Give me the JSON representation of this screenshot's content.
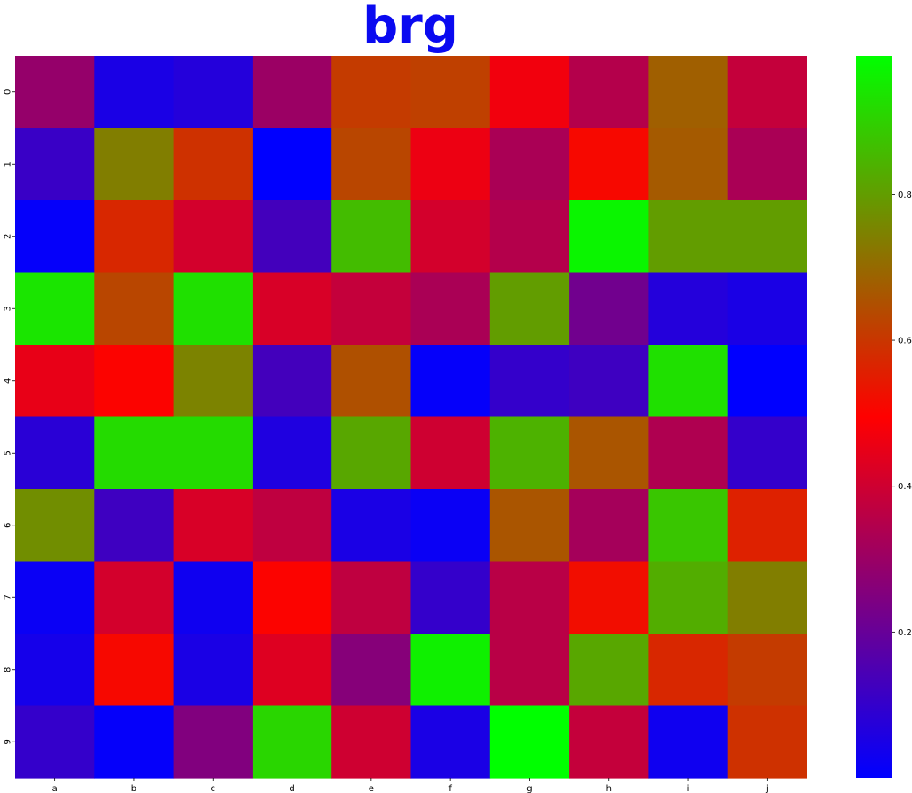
{
  "chart_data": {
    "type": "heatmap",
    "title": "brg",
    "title_color": "#0a0af0",
    "colormap": "brg",
    "x_categories": [
      "a",
      "b",
      "c",
      "d",
      "e",
      "f",
      "g",
      "h",
      "i",
      "j"
    ],
    "y_categories": [
      "0",
      "1",
      "2",
      "3",
      "4",
      "5",
      "6",
      "7",
      "8",
      "9"
    ],
    "values": [
      [
        0.29,
        0.05,
        0.07,
        0.3,
        0.61,
        0.62,
        0.47,
        0.35,
        0.68,
        0.38
      ],
      [
        0.11,
        0.74,
        0.59,
        0.0,
        0.63,
        0.46,
        0.33,
        0.51,
        0.67,
        0.33
      ],
      [
        0.01,
        0.57,
        0.41,
        0.13,
        0.86,
        0.41,
        0.35,
        0.97,
        0.8,
        0.8
      ],
      [
        0.94,
        0.63,
        0.93,
        0.42,
        0.38,
        0.33,
        0.8,
        0.22,
        0.07,
        0.05
      ],
      [
        0.45,
        0.5,
        0.75,
        0.13,
        0.65,
        0.01,
        0.1,
        0.12,
        0.93,
        0.0
      ],
      [
        0.08,
        0.92,
        0.92,
        0.06,
        0.82,
        0.4,
        0.84,
        0.66,
        0.34,
        0.1
      ],
      [
        0.77,
        0.12,
        0.42,
        0.37,
        0.05,
        0.02,
        0.66,
        0.32,
        0.88,
        0.56
      ],
      [
        0.02,
        0.41,
        0.03,
        0.5,
        0.37,
        0.1,
        0.36,
        0.52,
        0.83,
        0.74
      ],
      [
        0.04,
        0.51,
        0.05,
        0.43,
        0.26,
        0.96,
        0.36,
        0.82,
        0.57,
        0.61
      ],
      [
        0.1,
        0.01,
        0.25,
        0.91,
        0.4,
        0.05,
        0.99,
        0.38,
        0.03,
        0.59
      ]
    ],
    "colorbar": {
      "range": [
        0.0,
        0.99
      ],
      "ticks": [
        0.2,
        0.4,
        0.6,
        0.8
      ],
      "tick_labels": [
        "0.2",
        "0.4",
        "0.6",
        "0.8"
      ]
    },
    "legend": "none",
    "grid": false
  }
}
